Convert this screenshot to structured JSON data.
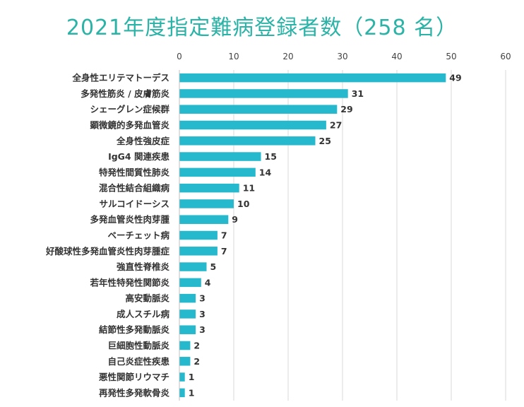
{
  "chart_data": {
    "type": "bar",
    "orientation": "horizontal",
    "title": "2021年度指定難病登録者数（258 名）",
    "xlabel": "",
    "ylabel": "",
    "xlim": [
      0,
      60
    ],
    "ticks": [
      0,
      10,
      20,
      30,
      40,
      50,
      60
    ],
    "tick_position": "top",
    "grid": true,
    "bar_color": "#26b8cc",
    "title_color": "#2ab3a6",
    "categories": [
      "全身性エリテマトーデス",
      "多発性筋炎 / 皮膚筋炎",
      "シェーグレン症候群",
      "顕微鏡的多発血管炎",
      "全身性強皮症",
      "IgG4 関連疾患",
      "特発性間質性肺炎",
      "混合性結合組織病",
      "サルコイドーシス",
      "多発血管炎性肉芽腫",
      "ベーチェット病",
      "好酸球性多発血管炎性肉芽腫症",
      "強直性脊椎炎",
      "若年性特発性関節炎",
      "高安動脈炎",
      "成人スチル病",
      "結節性多発動脈炎",
      "巨細胞性動脈炎",
      "自己炎症性疾患",
      "悪性関節リウマチ",
      "再発性多発軟骨炎"
    ],
    "values": [
      49,
      31,
      29,
      27,
      25,
      15,
      14,
      11,
      10,
      9,
      7,
      7,
      5,
      4,
      3,
      3,
      3,
      2,
      2,
      1,
      1
    ]
  }
}
